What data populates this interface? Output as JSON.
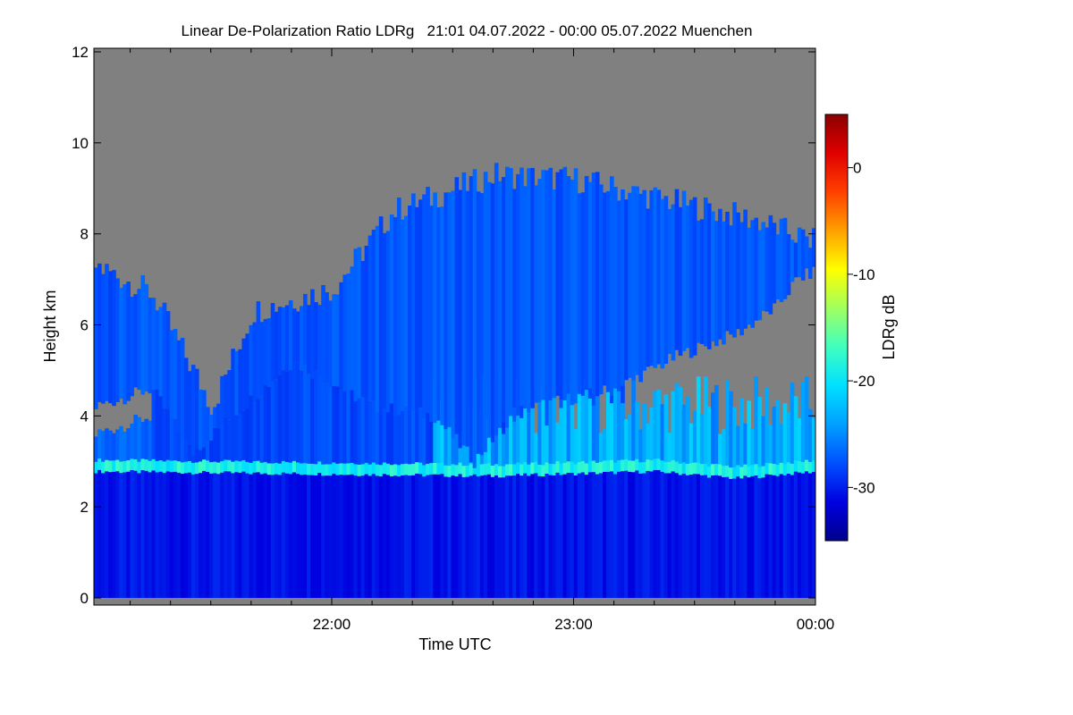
{
  "chart_data": {
    "type": "heatmap",
    "title": "Linear De-Polarization Ratio LDRg   21:01 04.07.2022 - 00:00 05.07.2022 Muenchen",
    "xlabel": "Time UTC",
    "ylabel": "Height km",
    "colorbar_label": "LDRg dB",
    "x_range": [
      "21:01",
      "00:00"
    ],
    "x_ticks": [
      "22:00",
      "23:00",
      "00:00"
    ],
    "ylim": [
      0,
      12
    ],
    "y_ticks": [
      "0",
      "2",
      "4",
      "6",
      "8",
      "10",
      "12"
    ],
    "color_range": [
      -35,
      5
    ],
    "colorbar_ticks": [
      "0",
      "-10",
      "-20",
      "-30"
    ],
    "colorbar_tick_values": [
      0,
      -10,
      -20,
      -30
    ],
    "no_data_color": "#808080",
    "colormap": [
      "#00008c",
      "#0000e0",
      "#0050ff",
      "#00a0ff",
      "#00e0ff",
      "#40ffc0",
      "#a0ff60",
      "#ffff00",
      "#ffa000",
      "#ff4000",
      "#e00000",
      "#8c0000"
    ],
    "features": [
      {
        "name": "melting layer (bright band)",
        "height_km": 2.8,
        "ldr_db": -20
      },
      {
        "name": "fall streaks below cloud",
        "height_km_range": [
          2.9,
          4.2
        ],
        "ldr_db_range": [
          -25,
          -20
        ]
      },
      {
        "name": "ice cloud",
        "height_km_range": [
          4.2,
          9.6
        ],
        "ldr_db": -29
      },
      {
        "name": "rain below melting layer",
        "height_km_range": [
          0,
          2.7
        ],
        "ldr_db": -32
      }
    ]
  }
}
